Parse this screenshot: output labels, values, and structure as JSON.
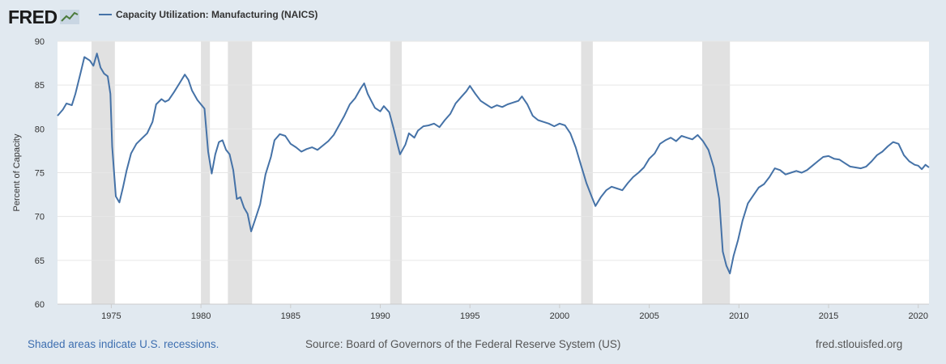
{
  "header": {
    "logo_text": "FRED",
    "logo_icon": "trend-line-icon"
  },
  "footer": {
    "recession_note": "Shaded areas indicate U.S. recessions.",
    "source": "Source: Board of Governors of the Federal Reserve System (US)",
    "site": "fred.stlouisfed.org"
  },
  "colors": {
    "background": "#e1e9f0",
    "plot_background": "#ffffff",
    "series_line": "#4572a7",
    "recession_shading": "#e1e1e1",
    "gridline": "#e6e6e6"
  },
  "chart_data": {
    "type": "line",
    "title": "",
    "xlabel": "",
    "ylabel": "Percent of Capacity",
    "xlim": [
      1972.0,
      2020.6
    ],
    "ylim": [
      60,
      90
    ],
    "x_ticks": [
      "1975",
      "1980",
      "1985",
      "1990",
      "1995",
      "2000",
      "2005",
      "2010",
      "2015",
      "2020"
    ],
    "y_ticks": [
      "60",
      "65",
      "70",
      "75",
      "80",
      "85",
      "90"
    ],
    "grid": true,
    "legend": "top-left",
    "recessions": [
      [
        1973.9,
        1975.2
      ],
      [
        1980.0,
        1980.5
      ],
      [
        1981.5,
        1982.85
      ],
      [
        1990.55,
        1991.2
      ],
      [
        2001.2,
        2001.85
      ],
      [
        2007.95,
        2009.5
      ]
    ],
    "series": [
      {
        "name": "Capacity Utilization: Manufacturing (NAICS)",
        "points": [
          [
            1972.0,
            81.5
          ],
          [
            1972.3,
            82.2
          ],
          [
            1972.5,
            82.9
          ],
          [
            1972.8,
            82.7
          ],
          [
            1973.0,
            84.0
          ],
          [
            1973.3,
            86.5
          ],
          [
            1973.5,
            88.2
          ],
          [
            1973.8,
            87.8
          ],
          [
            1974.0,
            87.2
          ],
          [
            1974.2,
            88.6
          ],
          [
            1974.4,
            87.0
          ],
          [
            1974.6,
            86.3
          ],
          [
            1974.8,
            86.0
          ],
          [
            1974.95,
            84.0
          ],
          [
            1975.05,
            78.0
          ],
          [
            1975.25,
            72.3
          ],
          [
            1975.45,
            71.6
          ],
          [
            1975.65,
            73.3
          ],
          [
            1975.85,
            75.2
          ],
          [
            1976.1,
            77.2
          ],
          [
            1976.4,
            78.3
          ],
          [
            1976.7,
            78.9
          ],
          [
            1977.0,
            79.5
          ],
          [
            1977.3,
            80.8
          ],
          [
            1977.5,
            82.8
          ],
          [
            1977.8,
            83.4
          ],
          [
            1978.0,
            83.1
          ],
          [
            1978.2,
            83.3
          ],
          [
            1978.5,
            84.2
          ],
          [
            1978.8,
            85.2
          ],
          [
            1979.1,
            86.2
          ],
          [
            1979.3,
            85.6
          ],
          [
            1979.5,
            84.4
          ],
          [
            1979.8,
            83.3
          ],
          [
            1980.0,
            82.8
          ],
          [
            1980.2,
            82.3
          ],
          [
            1980.4,
            77.4
          ],
          [
            1980.6,
            74.9
          ],
          [
            1980.8,
            77.1
          ],
          [
            1981.0,
            78.5
          ],
          [
            1981.2,
            78.7
          ],
          [
            1981.4,
            77.6
          ],
          [
            1981.6,
            77.1
          ],
          [
            1981.8,
            75.3
          ],
          [
            1982.0,
            72.0
          ],
          [
            1982.2,
            72.2
          ],
          [
            1982.4,
            71.0
          ],
          [
            1982.6,
            70.3
          ],
          [
            1982.8,
            68.3
          ],
          [
            1983.0,
            69.5
          ],
          [
            1983.3,
            71.4
          ],
          [
            1983.6,
            74.8
          ],
          [
            1983.9,
            76.8
          ],
          [
            1984.1,
            78.7
          ],
          [
            1984.4,
            79.4
          ],
          [
            1984.7,
            79.2
          ],
          [
            1985.0,
            78.3
          ],
          [
            1985.3,
            77.9
          ],
          [
            1985.6,
            77.4
          ],
          [
            1985.9,
            77.7
          ],
          [
            1986.2,
            77.9
          ],
          [
            1986.5,
            77.6
          ],
          [
            1986.8,
            78.1
          ],
          [
            1987.1,
            78.6
          ],
          [
            1987.4,
            79.3
          ],
          [
            1987.7,
            80.4
          ],
          [
            1988.0,
            81.5
          ],
          [
            1988.3,
            82.8
          ],
          [
            1988.6,
            83.5
          ],
          [
            1988.9,
            84.6
          ],
          [
            1989.1,
            85.2
          ],
          [
            1989.3,
            84.0
          ],
          [
            1989.5,
            83.2
          ],
          [
            1989.7,
            82.4
          ],
          [
            1990.0,
            82.0
          ],
          [
            1990.2,
            82.6
          ],
          [
            1990.5,
            81.9
          ],
          [
            1990.75,
            80.0
          ],
          [
            1990.95,
            78.3
          ],
          [
            1991.1,
            77.1
          ],
          [
            1991.4,
            78.2
          ],
          [
            1991.6,
            79.5
          ],
          [
            1991.9,
            79.0
          ],
          [
            1992.1,
            79.8
          ],
          [
            1992.4,
            80.3
          ],
          [
            1992.7,
            80.4
          ],
          [
            1993.0,
            80.6
          ],
          [
            1993.3,
            80.2
          ],
          [
            1993.6,
            81.0
          ],
          [
            1993.9,
            81.7
          ],
          [
            1994.2,
            82.9
          ],
          [
            1994.5,
            83.6
          ],
          [
            1994.8,
            84.3
          ],
          [
            1995.0,
            84.9
          ],
          [
            1995.3,
            84.0
          ],
          [
            1995.6,
            83.2
          ],
          [
            1995.9,
            82.8
          ],
          [
            1996.2,
            82.4
          ],
          [
            1996.5,
            82.7
          ],
          [
            1996.8,
            82.5
          ],
          [
            1997.1,
            82.8
          ],
          [
            1997.4,
            83.0
          ],
          [
            1997.7,
            83.2
          ],
          [
            1997.9,
            83.7
          ],
          [
            1998.2,
            82.8
          ],
          [
            1998.5,
            81.5
          ],
          [
            1998.8,
            81.0
          ],
          [
            1999.1,
            80.8
          ],
          [
            1999.4,
            80.6
          ],
          [
            1999.7,
            80.3
          ],
          [
            2000.0,
            80.6
          ],
          [
            2000.3,
            80.4
          ],
          [
            2000.6,
            79.5
          ],
          [
            2000.9,
            77.9
          ],
          [
            2001.2,
            75.8
          ],
          [
            2001.5,
            73.8
          ],
          [
            2001.8,
            72.2
          ],
          [
            2002.0,
            71.2
          ],
          [
            2002.3,
            72.2
          ],
          [
            2002.6,
            73.0
          ],
          [
            2002.9,
            73.4
          ],
          [
            2003.2,
            73.2
          ],
          [
            2003.5,
            73.0
          ],
          [
            2003.8,
            73.8
          ],
          [
            2004.1,
            74.5
          ],
          [
            2004.4,
            75.0
          ],
          [
            2004.7,
            75.6
          ],
          [
            2005.0,
            76.6
          ],
          [
            2005.3,
            77.2
          ],
          [
            2005.6,
            78.3
          ],
          [
            2005.9,
            78.7
          ],
          [
            2006.2,
            79.0
          ],
          [
            2006.5,
            78.6
          ],
          [
            2006.8,
            79.2
          ],
          [
            2007.1,
            79.0
          ],
          [
            2007.4,
            78.8
          ],
          [
            2007.7,
            79.3
          ],
          [
            2008.0,
            78.6
          ],
          [
            2008.3,
            77.6
          ],
          [
            2008.6,
            75.6
          ],
          [
            2008.9,
            72.0
          ],
          [
            2009.1,
            66.0
          ],
          [
            2009.3,
            64.4
          ],
          [
            2009.5,
            63.5
          ],
          [
            2009.7,
            65.5
          ],
          [
            2009.95,
            67.3
          ],
          [
            2010.2,
            69.5
          ],
          [
            2010.5,
            71.5
          ],
          [
            2010.8,
            72.4
          ],
          [
            2011.1,
            73.3
          ],
          [
            2011.4,
            73.7
          ],
          [
            2011.7,
            74.5
          ],
          [
            2012.0,
            75.5
          ],
          [
            2012.3,
            75.3
          ],
          [
            2012.6,
            74.8
          ],
          [
            2012.9,
            75.0
          ],
          [
            2013.2,
            75.2
          ],
          [
            2013.5,
            75.0
          ],
          [
            2013.8,
            75.3
          ],
          [
            2014.1,
            75.8
          ],
          [
            2014.4,
            76.3
          ],
          [
            2014.7,
            76.8
          ],
          [
            2015.0,
            76.9
          ],
          [
            2015.3,
            76.6
          ],
          [
            2015.6,
            76.5
          ],
          [
            2015.9,
            76.1
          ],
          [
            2016.2,
            75.7
          ],
          [
            2016.5,
            75.6
          ],
          [
            2016.8,
            75.5
          ],
          [
            2017.1,
            75.7
          ],
          [
            2017.4,
            76.3
          ],
          [
            2017.7,
            77.0
          ],
          [
            2018.0,
            77.4
          ],
          [
            2018.3,
            78.0
          ],
          [
            2018.6,
            78.5
          ],
          [
            2018.9,
            78.3
          ],
          [
            2019.2,
            77.0
          ],
          [
            2019.5,
            76.3
          ],
          [
            2019.8,
            75.9
          ],
          [
            2020.0,
            75.8
          ],
          [
            2020.2,
            75.4
          ],
          [
            2020.4,
            75.9
          ],
          [
            2020.6,
            75.6
          ]
        ]
      }
    ]
  }
}
